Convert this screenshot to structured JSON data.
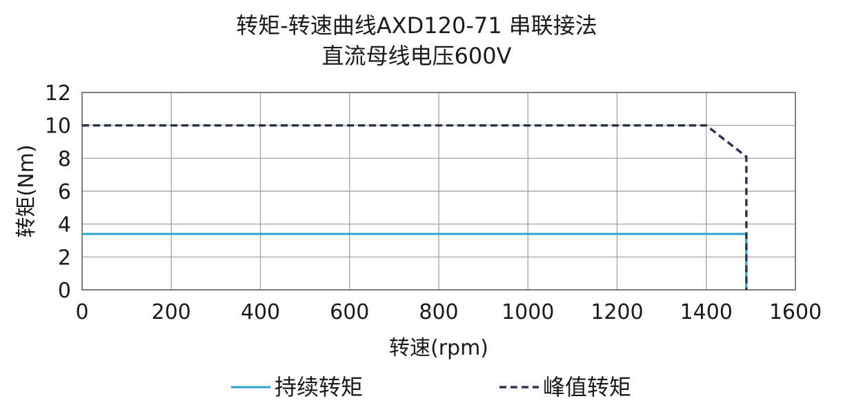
{
  "chart_data": {
    "type": "line",
    "title": "转矩-转速曲线AXD120-71 串联接法",
    "subtitle": "直流母线电压600V",
    "xlabel": "转速(rpm)",
    "ylabel": "转矩(Nm)",
    "xlim": [
      0,
      1600
    ],
    "ylim": [
      0,
      12
    ],
    "xticks": [
      0,
      200,
      400,
      600,
      800,
      1000,
      1200,
      1400,
      1600
    ],
    "yticks": [
      0,
      2,
      4,
      6,
      8,
      10,
      12
    ],
    "grid": true,
    "legend": "bottom",
    "series": [
      {
        "name": "持续转矩",
        "color": "#2aa4cf",
        "style": "solid",
        "x": [
          0,
          1490,
          1490
        ],
        "y": [
          3.4,
          3.4,
          0
        ]
      },
      {
        "name": "峰值转矩",
        "color": "#2f3257",
        "style": "dashed",
        "x": [
          0,
          1400,
          1490,
          1490
        ],
        "y": [
          10,
          10,
          8.1,
          0
        ]
      }
    ]
  }
}
